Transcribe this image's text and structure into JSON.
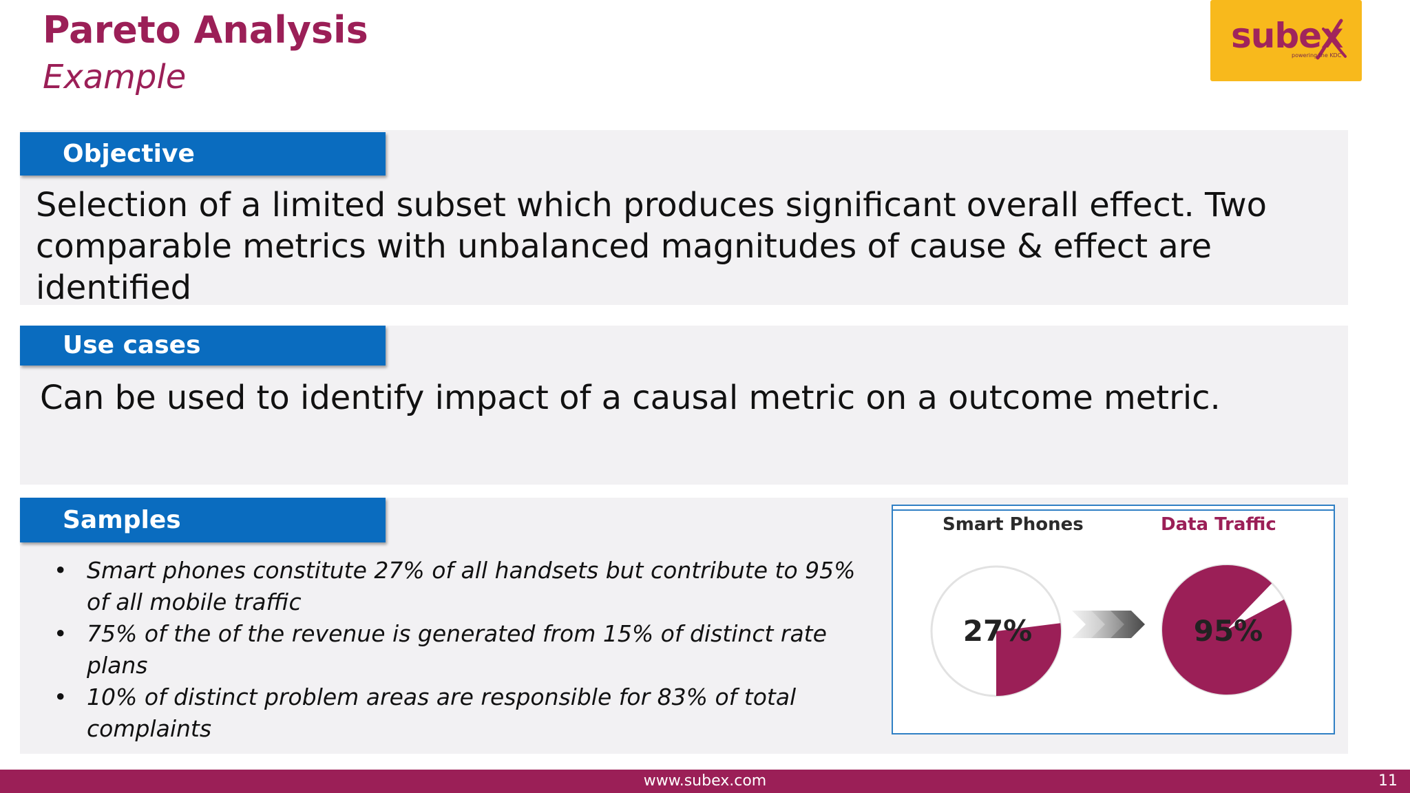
{
  "header": {
    "title": "Pareto Analysis",
    "subtitle": "Example"
  },
  "logo": {
    "brand": "subex",
    "tagline": "powering the KDC",
    "background_color": "#f8b91c",
    "text_color": "#a0245c"
  },
  "sections": {
    "objective": {
      "label": "Objective",
      "text": "Selection of a limited subset which produces significant overall effect. Two comparable metrics with unbalanced magnitudes of cause & effect are identified"
    },
    "use_cases": {
      "label": "Use cases",
      "text": "Can be used to identify impact of a causal metric on a outcome metric."
    },
    "samples": {
      "label": "Samples",
      "bullet": "•",
      "items": [
        "Smart phones constitute 27% of all handsets but contribute to 95% of all mobile traffic",
        "75% of the of the revenue is generated from 15% of distinct rate plans",
        "10% of distinct problem areas are responsible for 83% of total complaints"
      ]
    }
  },
  "figure": {
    "left_label": "Smart Phones",
    "right_label": "Data Traffic",
    "left_value_text": "27%",
    "right_value_text": "95%",
    "left_fraction": 0.27,
    "right_fraction": 0.95,
    "slice_color": "#9b1f57",
    "remainder_color": "#ffffff",
    "arrow_icon": "double-chevron-right-icon"
  },
  "footer": {
    "url": "www.subex.com",
    "page_number": "11",
    "color": "#9b1f57"
  },
  "colors": {
    "accent": "#9b1f57",
    "tab_blue": "#0a6cbf",
    "panel_gray": "#f2f1f3"
  }
}
